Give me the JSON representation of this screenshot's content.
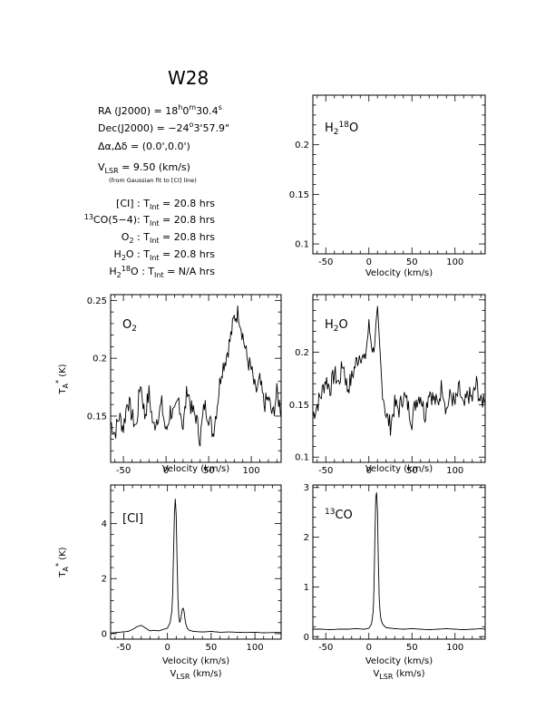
{
  "figure": {
    "title": "W28",
    "info": {
      "ra": "RA (J2000) = 18h0m30.4s",
      "dec": "Dec(J2000) = −24°3'57.9\"",
      "offset": "Δα,Δδ = (0.0',0.0')",
      "vlsr": "VLSR = 9.50 (km/s)",
      "vlsr_note": "(from Gaussian fit to [CI] line)",
      "integrations": [
        "[CI] : TInt = 20.8 hrs",
        "13CO(5−4): TInt = 20.8 hrs",
        "O2 : TInt = 20.8 hrs",
        "H2O : TInt = 20.8 hrs",
        "H2 18O : TInt = N/A hrs"
      ]
    }
  },
  "text": {
    "title": "W28",
    "ra_lbl": "RA (J2000)  =  18",
    "ra_h": "h",
    "ra_min": "0",
    "ra_m": "m",
    "ra_sec": "30.4",
    "ra_s": "s",
    "dec_lbl": "Dec(J2000)  =  −24",
    "dec_deg": "o",
    "dec_rest": "3'57.9\"",
    "off_lbl": "Δα,Δδ  =  (0.0',0.0')",
    "v_V": "V",
    "v_sub": "LSR",
    "v_rest": "  = 9.50  (km/s)",
    "v_note": "(from Gaussian fit to [CI] line)",
    "ci_lbl": "[CI] : T",
    "int_sub": "Int",
    "int_val": " = 20.8 hrs",
    "co_sup": "13",
    "co_lbl": "CO(5−4): T",
    "o2_O": "O",
    "o2_2": "2",
    "o2_rest": " : T",
    "h2o_H": "H",
    "h2o_2": "2",
    "h2o_O": "O : T",
    "h218_H": "H",
    "h218_2": "2",
    "h218_18": "18",
    "h218_O": "O : T",
    "na_val": " = N/A hrs",
    "xlabel": "Velocity (km/s)",
    "vlsr_lbl_V": "V",
    "vlsr_lbl_sub": "LSR",
    "vlsr_lbl_rest": " (km/s)",
    "ylab_T": "T",
    "ylab_A": "A",
    "ylab_star": "*",
    "ylab_K": "(K)",
    "p1_H": "H",
    "p1_2": "2",
    "p1_18": "18",
    "p1_O": "O",
    "p2_O": "O",
    "p2_2": "2",
    "p3_H": "H",
    "p3_2": "2",
    "p3_O": "O",
    "p4_lbl": "[CI]",
    "p5_13": "13",
    "p5_CO": "CO"
  },
  "chart_data": [
    {
      "id": "h2_18o",
      "type": "line",
      "panel_label": "H2 18O",
      "xlabel": "Velocity (km/s)",
      "ylabel": "",
      "xlim": [
        -65,
        135
      ],
      "ylim": [
        0.09,
        0.25
      ],
      "xticks": [
        -50,
        0,
        50,
        100
      ],
      "yticks": [
        0.1,
        0.15,
        0.2
      ],
      "ytick_labels": [
        "0.1",
        "0.15",
        "0.2"
      ],
      "series": []
    },
    {
      "id": "o2",
      "type": "line",
      "panel_label": "O2",
      "xlabel": "Velocity (km/s)",
      "ylabel": "TA* (K)",
      "xlim": [
        -65,
        135
      ],
      "ylim": [
        0.11,
        0.255
      ],
      "xticks": [
        -50,
        0,
        50,
        100
      ],
      "yticks": [
        0.15,
        0.2,
        0.25
      ],
      "ytick_labels": [
        "0.15",
        "0.2",
        "0.25"
      ],
      "series": [
        {
          "x": [
            -65,
            -60,
            -55,
            -50,
            -45,
            -40,
            -35,
            -30,
            -25,
            -20,
            -15,
            -10,
            -5,
            0,
            5,
            10,
            15,
            20,
            25,
            30,
            35,
            40,
            45,
            50,
            55,
            60,
            65,
            70,
            75,
            80,
            85,
            90,
            95,
            100,
            105,
            110,
            115,
            120,
            125,
            130,
            135
          ],
          "y": [
            0.145,
            0.135,
            0.15,
            0.14,
            0.165,
            0.15,
            0.14,
            0.18,
            0.15,
            0.17,
            0.14,
            0.15,
            0.16,
            0.135,
            0.155,
            0.15,
            0.165,
            0.14,
            0.175,
            0.155,
            0.15,
            0.13,
            0.16,
            0.15,
            0.135,
            0.16,
            0.19,
            0.2,
            0.215,
            0.235,
            0.24,
            0.22,
            0.2,
            0.19,
            0.17,
            0.18,
            0.16,
            0.165,
            0.15,
            0.17,
            0.155
          ]
        }
      ]
    },
    {
      "id": "h2o",
      "type": "line",
      "panel_label": "H2O",
      "xlabel": "Velocity (km/s)",
      "ylabel": "",
      "xlim": [
        -65,
        135
      ],
      "ylim": [
        0.095,
        0.255
      ],
      "xticks": [
        -50,
        0,
        50,
        100
      ],
      "yticks": [
        0.1,
        0.15,
        0.2
      ],
      "ytick_labels": [
        "0.1",
        "0.15",
        "0.2"
      ],
      "series": [
        {
          "x": [
            -65,
            -60,
            -55,
            -50,
            -45,
            -40,
            -35,
            -30,
            -25,
            -20,
            -15,
            -10,
            -5,
            0,
            5,
            10,
            15,
            20,
            25,
            30,
            35,
            40,
            45,
            50,
            55,
            60,
            65,
            70,
            75,
            80,
            85,
            90,
            95,
            100,
            105,
            110,
            115,
            120,
            125,
            130,
            135
          ],
          "y": [
            0.14,
            0.15,
            0.16,
            0.175,
            0.165,
            0.18,
            0.17,
            0.19,
            0.165,
            0.175,
            0.19,
            0.2,
            0.19,
            0.225,
            0.2,
            0.235,
            0.17,
            0.14,
            0.13,
            0.15,
            0.145,
            0.16,
            0.15,
            0.135,
            0.155,
            0.16,
            0.14,
            0.165,
            0.155,
            0.15,
            0.17,
            0.145,
            0.16,
            0.15,
            0.165,
            0.145,
            0.16,
            0.155,
            0.17,
            0.15,
            0.16
          ]
        }
      ]
    },
    {
      "id": "ci",
      "type": "line",
      "panel_label": "[CI]",
      "xlabel": "Velocity (km/s)",
      "xlabel2": "VLSR (km/s)",
      "ylabel": "TA* (K)",
      "xlim": [
        -65,
        130
      ],
      "ylim": [
        -0.2,
        5.4
      ],
      "xticks": [
        -50,
        0,
        50,
        100
      ],
      "yticks": [
        0,
        2,
        4
      ],
      "ytick_labels": [
        "0",
        "2",
        "4"
      ],
      "series": [
        {
          "x": [
            -65,
            -55,
            -45,
            -40,
            -35,
            -30,
            -25,
            -20,
            -15,
            -10,
            -5,
            0,
            3,
            5,
            6,
            7,
            8,
            9,
            10,
            11,
            12,
            13,
            14,
            15,
            16,
            17,
            18,
            19,
            20,
            21,
            22,
            23,
            25,
            30,
            40,
            50,
            60,
            70,
            80,
            90,
            100,
            110,
            120,
            130
          ],
          "y": [
            0.02,
            0.05,
            0.08,
            0.15,
            0.25,
            0.3,
            0.2,
            0.1,
            0.12,
            0.1,
            0.15,
            0.2,
            0.4,
            0.8,
            1.5,
            3.0,
            4.4,
            4.9,
            4.3,
            2.6,
            1.3,
            0.6,
            0.4,
            0.5,
            0.7,
            0.9,
            0.92,
            0.8,
            0.55,
            0.35,
            0.25,
            0.18,
            0.12,
            0.08,
            0.06,
            0.08,
            0.05,
            0.06,
            0.05,
            0.04,
            0.05,
            0.03,
            0.04,
            0.04
          ]
        }
      ]
    },
    {
      "id": "13co",
      "type": "line",
      "panel_label": "13CO",
      "xlabel": "Velocity (km/s)",
      "xlabel2": "VLSR (km/s)",
      "ylabel": "",
      "xlim": [
        -65,
        135
      ],
      "ylim": [
        -0.05,
        3.05
      ],
      "xticks": [
        -50,
        0,
        50,
        100
      ],
      "yticks": [
        0,
        1,
        2,
        3
      ],
      "ytick_labels": [
        "0",
        "1",
        "2",
        "3"
      ],
      "series": [
        {
          "x": [
            -65,
            -55,
            -45,
            -35,
            -25,
            -15,
            -5,
            0,
            3,
            5,
            6,
            7,
            8,
            9,
            10,
            11,
            12,
            13,
            14,
            16,
            20,
            30,
            40,
            50,
            60,
            70,
            80,
            90,
            100,
            110,
            120,
            130,
            135
          ],
          "y": [
            0.15,
            0.15,
            0.14,
            0.15,
            0.15,
            0.16,
            0.15,
            0.17,
            0.25,
            0.5,
            1.0,
            2.0,
            2.8,
            2.9,
            2.5,
            1.5,
            0.8,
            0.5,
            0.35,
            0.25,
            0.18,
            0.16,
            0.15,
            0.16,
            0.15,
            0.14,
            0.15,
            0.16,
            0.15,
            0.14,
            0.15,
            0.16,
            0.15
          ]
        }
      ]
    }
  ]
}
